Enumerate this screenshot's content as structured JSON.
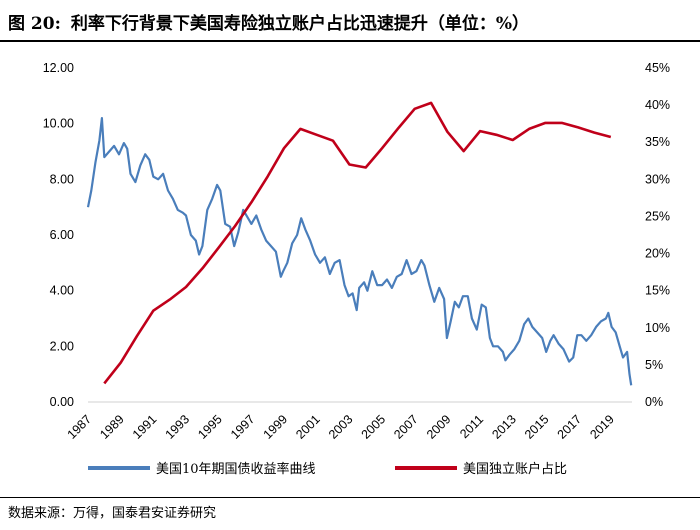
{
  "figure": {
    "number": "图 20:",
    "title": "利率下行背景下美国寿险独立账户占比迅速提升（单位：%）",
    "source": "数据来源：万得，国泰君安证券研究"
  },
  "colors": {
    "yield": "#4a7ebb",
    "share": "#c0001a"
  },
  "chart_data": {
    "type": "line",
    "x_range": [
      1987,
      2020.3
    ],
    "x_ticks": [
      "1987",
      "1989",
      "1991",
      "1993",
      "1995",
      "1997",
      "1999",
      "2001",
      "2003",
      "2005",
      "2007",
      "2009",
      "2011",
      "2013",
      "2015",
      "2017",
      "2019"
    ],
    "y_left": {
      "min": 0,
      "max": 12,
      "ticks": [
        "0.00",
        "2.00",
        "4.00",
        "6.00",
        "8.00",
        "10.00",
        "12.00"
      ]
    },
    "y_right": {
      "min": 0,
      "max": 45,
      "ticks": [
        "0%",
        "5%",
        "10%",
        "15%",
        "20%",
        "25%",
        "30%",
        "35%",
        "40%",
        "45%"
      ]
    },
    "series": [
      {
        "name": "美国10年期国债收益率曲线",
        "axis": "left",
        "points": [
          [
            1987.0,
            7.0
          ],
          [
            1987.2,
            7.6
          ],
          [
            1987.45,
            8.6
          ],
          [
            1987.7,
            9.4
          ],
          [
            1987.85,
            10.2
          ],
          [
            1988.0,
            8.8
          ],
          [
            1988.3,
            9.0
          ],
          [
            1988.6,
            9.2
          ],
          [
            1988.9,
            8.9
          ],
          [
            1989.2,
            9.3
          ],
          [
            1989.4,
            9.1
          ],
          [
            1989.6,
            8.2
          ],
          [
            1989.9,
            7.9
          ],
          [
            1990.2,
            8.5
          ],
          [
            1990.5,
            8.9
          ],
          [
            1990.75,
            8.7
          ],
          [
            1991.0,
            8.1
          ],
          [
            1991.3,
            8.0
          ],
          [
            1991.6,
            8.2
          ],
          [
            1991.9,
            7.6
          ],
          [
            1992.2,
            7.3
          ],
          [
            1992.5,
            6.9
          ],
          [
            1992.8,
            6.8
          ],
          [
            1993.0,
            6.7
          ],
          [
            1993.3,
            6.0
          ],
          [
            1993.6,
            5.8
          ],
          [
            1993.8,
            5.3
          ],
          [
            1994.0,
            5.6
          ],
          [
            1994.3,
            6.9
          ],
          [
            1994.6,
            7.3
          ],
          [
            1994.9,
            7.8
          ],
          [
            1995.1,
            7.6
          ],
          [
            1995.4,
            6.4
          ],
          [
            1995.7,
            6.3
          ],
          [
            1995.95,
            5.6
          ],
          [
            1996.2,
            6.1
          ],
          [
            1996.5,
            6.9
          ],
          [
            1996.8,
            6.6
          ],
          [
            1997.0,
            6.4
          ],
          [
            1997.3,
            6.7
          ],
          [
            1997.6,
            6.2
          ],
          [
            1997.9,
            5.8
          ],
          [
            1998.2,
            5.6
          ],
          [
            1998.5,
            5.4
          ],
          [
            1998.8,
            4.5
          ],
          [
            1998.95,
            4.7
          ],
          [
            1999.2,
            5.0
          ],
          [
            1999.5,
            5.7
          ],
          [
            1999.8,
            6.0
          ],
          [
            2000.05,
            6.6
          ],
          [
            2000.3,
            6.2
          ],
          [
            2000.6,
            5.8
          ],
          [
            2000.9,
            5.3
          ],
          [
            2001.2,
            5.0
          ],
          [
            2001.5,
            5.2
          ],
          [
            2001.8,
            4.6
          ],
          [
            2002.1,
            5.0
          ],
          [
            2002.4,
            5.1
          ],
          [
            2002.7,
            4.2
          ],
          [
            2002.95,
            3.8
          ],
          [
            2003.2,
            3.9
          ],
          [
            2003.45,
            3.3
          ],
          [
            2003.6,
            4.1
          ],
          [
            2003.9,
            4.3
          ],
          [
            2004.1,
            4.0
          ],
          [
            2004.4,
            4.7
          ],
          [
            2004.7,
            4.2
          ],
          [
            2005.0,
            4.2
          ],
          [
            2005.3,
            4.4
          ],
          [
            2005.6,
            4.1
          ],
          [
            2005.9,
            4.5
          ],
          [
            2006.2,
            4.6
          ],
          [
            2006.5,
            5.1
          ],
          [
            2006.8,
            4.6
          ],
          [
            2007.1,
            4.7
          ],
          [
            2007.4,
            5.1
          ],
          [
            2007.6,
            4.9
          ],
          [
            2007.9,
            4.2
          ],
          [
            2008.2,
            3.6
          ],
          [
            2008.5,
            4.1
          ],
          [
            2008.8,
            3.7
          ],
          [
            2008.97,
            2.3
          ],
          [
            2009.2,
            2.9
          ],
          [
            2009.45,
            3.6
          ],
          [
            2009.7,
            3.4
          ],
          [
            2009.95,
            3.8
          ],
          [
            2010.25,
            3.8
          ],
          [
            2010.5,
            3.0
          ],
          [
            2010.8,
            2.6
          ],
          [
            2011.1,
            3.5
          ],
          [
            2011.35,
            3.4
          ],
          [
            2011.6,
            2.3
          ],
          [
            2011.8,
            2.0
          ],
          [
            2012.1,
            2.0
          ],
          [
            2012.4,
            1.8
          ],
          [
            2012.55,
            1.5
          ],
          [
            2012.8,
            1.7
          ],
          [
            2013.1,
            1.9
          ],
          [
            2013.4,
            2.2
          ],
          [
            2013.7,
            2.8
          ],
          [
            2013.95,
            3.0
          ],
          [
            2014.2,
            2.7
          ],
          [
            2014.5,
            2.5
          ],
          [
            2014.8,
            2.3
          ],
          [
            2015.05,
            1.8
          ],
          [
            2015.3,
            2.2
          ],
          [
            2015.5,
            2.4
          ],
          [
            2015.8,
            2.1
          ],
          [
            2016.1,
            1.9
          ],
          [
            2016.45,
            1.45
          ],
          [
            2016.7,
            1.6
          ],
          [
            2016.95,
            2.4
          ],
          [
            2017.2,
            2.4
          ],
          [
            2017.5,
            2.2
          ],
          [
            2017.8,
            2.4
          ],
          [
            2018.1,
            2.7
          ],
          [
            2018.4,
            2.9
          ],
          [
            2018.7,
            3.0
          ],
          [
            2018.85,
            3.2
          ],
          [
            2019.05,
            2.7
          ],
          [
            2019.3,
            2.5
          ],
          [
            2019.55,
            2.0
          ],
          [
            2019.75,
            1.6
          ],
          [
            2020.0,
            1.8
          ],
          [
            2020.15,
            1.0
          ],
          [
            2020.25,
            0.6
          ]
        ]
      },
      {
        "name": "美国独立账户占比",
        "axis": "right",
        "points": [
          [
            1988,
            2.5
          ],
          [
            1989,
            5.3
          ],
          [
            1990,
            8.9
          ],
          [
            1991,
            12.3
          ],
          [
            1992,
            13.8
          ],
          [
            1993,
            15.5
          ],
          [
            1994,
            18.0
          ],
          [
            1995,
            20.8
          ],
          [
            1996,
            23.7
          ],
          [
            1997,
            26.9
          ],
          [
            1998,
            30.4
          ],
          [
            1999,
            34.2
          ],
          [
            2000,
            36.8
          ],
          [
            2001,
            36.0
          ],
          [
            2002,
            35.2
          ],
          [
            2003,
            32.0
          ],
          [
            2004,
            31.6
          ],
          [
            2005,
            34.2
          ],
          [
            2006,
            36.9
          ],
          [
            2007,
            39.5
          ],
          [
            2008,
            40.3
          ],
          [
            2009,
            36.4
          ],
          [
            2010,
            33.8
          ],
          [
            2011,
            36.5
          ],
          [
            2012,
            36.0
          ],
          [
            2013,
            35.3
          ],
          [
            2014,
            36.8
          ],
          [
            2015,
            37.6
          ],
          [
            2016,
            37.6
          ],
          [
            2017,
            37.0
          ],
          [
            2018,
            36.3
          ],
          [
            2019,
            35.7
          ]
        ]
      }
    ],
    "legend": "bottom"
  }
}
